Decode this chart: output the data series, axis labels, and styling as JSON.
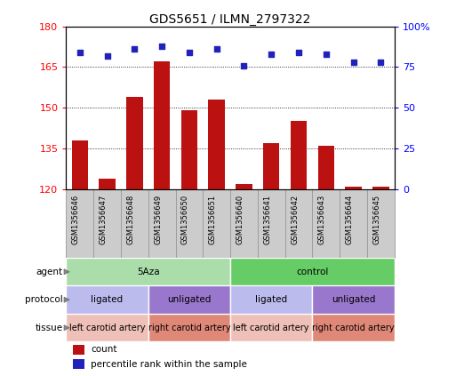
{
  "title": "GDS5651 / ILMN_2797322",
  "samples": [
    "GSM1356646",
    "GSM1356647",
    "GSM1356648",
    "GSM1356649",
    "GSM1356650",
    "GSM1356651",
    "GSM1356640",
    "GSM1356641",
    "GSM1356642",
    "GSM1356643",
    "GSM1356644",
    "GSM1356645"
  ],
  "count_values": [
    138,
    124,
    154,
    167,
    149,
    153,
    122,
    137,
    145,
    136,
    121,
    121
  ],
  "percentile_values": [
    84,
    82,
    86,
    88,
    84,
    86,
    76,
    83,
    84,
    83,
    78,
    78
  ],
  "ylim_left": [
    120,
    180
  ],
  "ylim_right": [
    0,
    100
  ],
  "yticks_left": [
    120,
    135,
    150,
    165,
    180
  ],
  "yticks_right": [
    0,
    25,
    50,
    75,
    100
  ],
  "ytick_right_labels": [
    "0",
    "25",
    "50",
    "75",
    "100%"
  ],
  "bar_color": "#bb1111",
  "dot_color": "#2222bb",
  "agent_groups": [
    {
      "label": "5Aza",
      "start": 0,
      "end": 6,
      "color": "#aaddaa"
    },
    {
      "label": "control",
      "start": 6,
      "end": 12,
      "color": "#66cc66"
    }
  ],
  "protocol_groups": [
    {
      "label": "ligated",
      "start": 0,
      "end": 3,
      "color": "#bbbbee"
    },
    {
      "label": "unligated",
      "start": 3,
      "end": 6,
      "color": "#9977cc"
    },
    {
      "label": "ligated",
      "start": 6,
      "end": 9,
      "color": "#bbbbee"
    },
    {
      "label": "unligated",
      "start": 9,
      "end": 12,
      "color": "#9977cc"
    }
  ],
  "tissue_groups": [
    {
      "label": "left carotid artery",
      "start": 0,
      "end": 3,
      "color": "#eec0b8"
    },
    {
      "label": "right carotid artery",
      "start": 3,
      "end": 6,
      "color": "#e08878"
    },
    {
      "label": "left carotid artery",
      "start": 6,
      "end": 9,
      "color": "#eec0b8"
    },
    {
      "label": "right carotid artery",
      "start": 9,
      "end": 12,
      "color": "#e08878"
    }
  ],
  "row_labels": [
    "agent",
    "protocol",
    "tissue"
  ],
  "legend_count_label": "count",
  "legend_pct_label": "percentile rank within the sample",
  "background_color": "#ffffff",
  "sample_bg_color": "#cccccc",
  "sample_box_edge": "#999999"
}
